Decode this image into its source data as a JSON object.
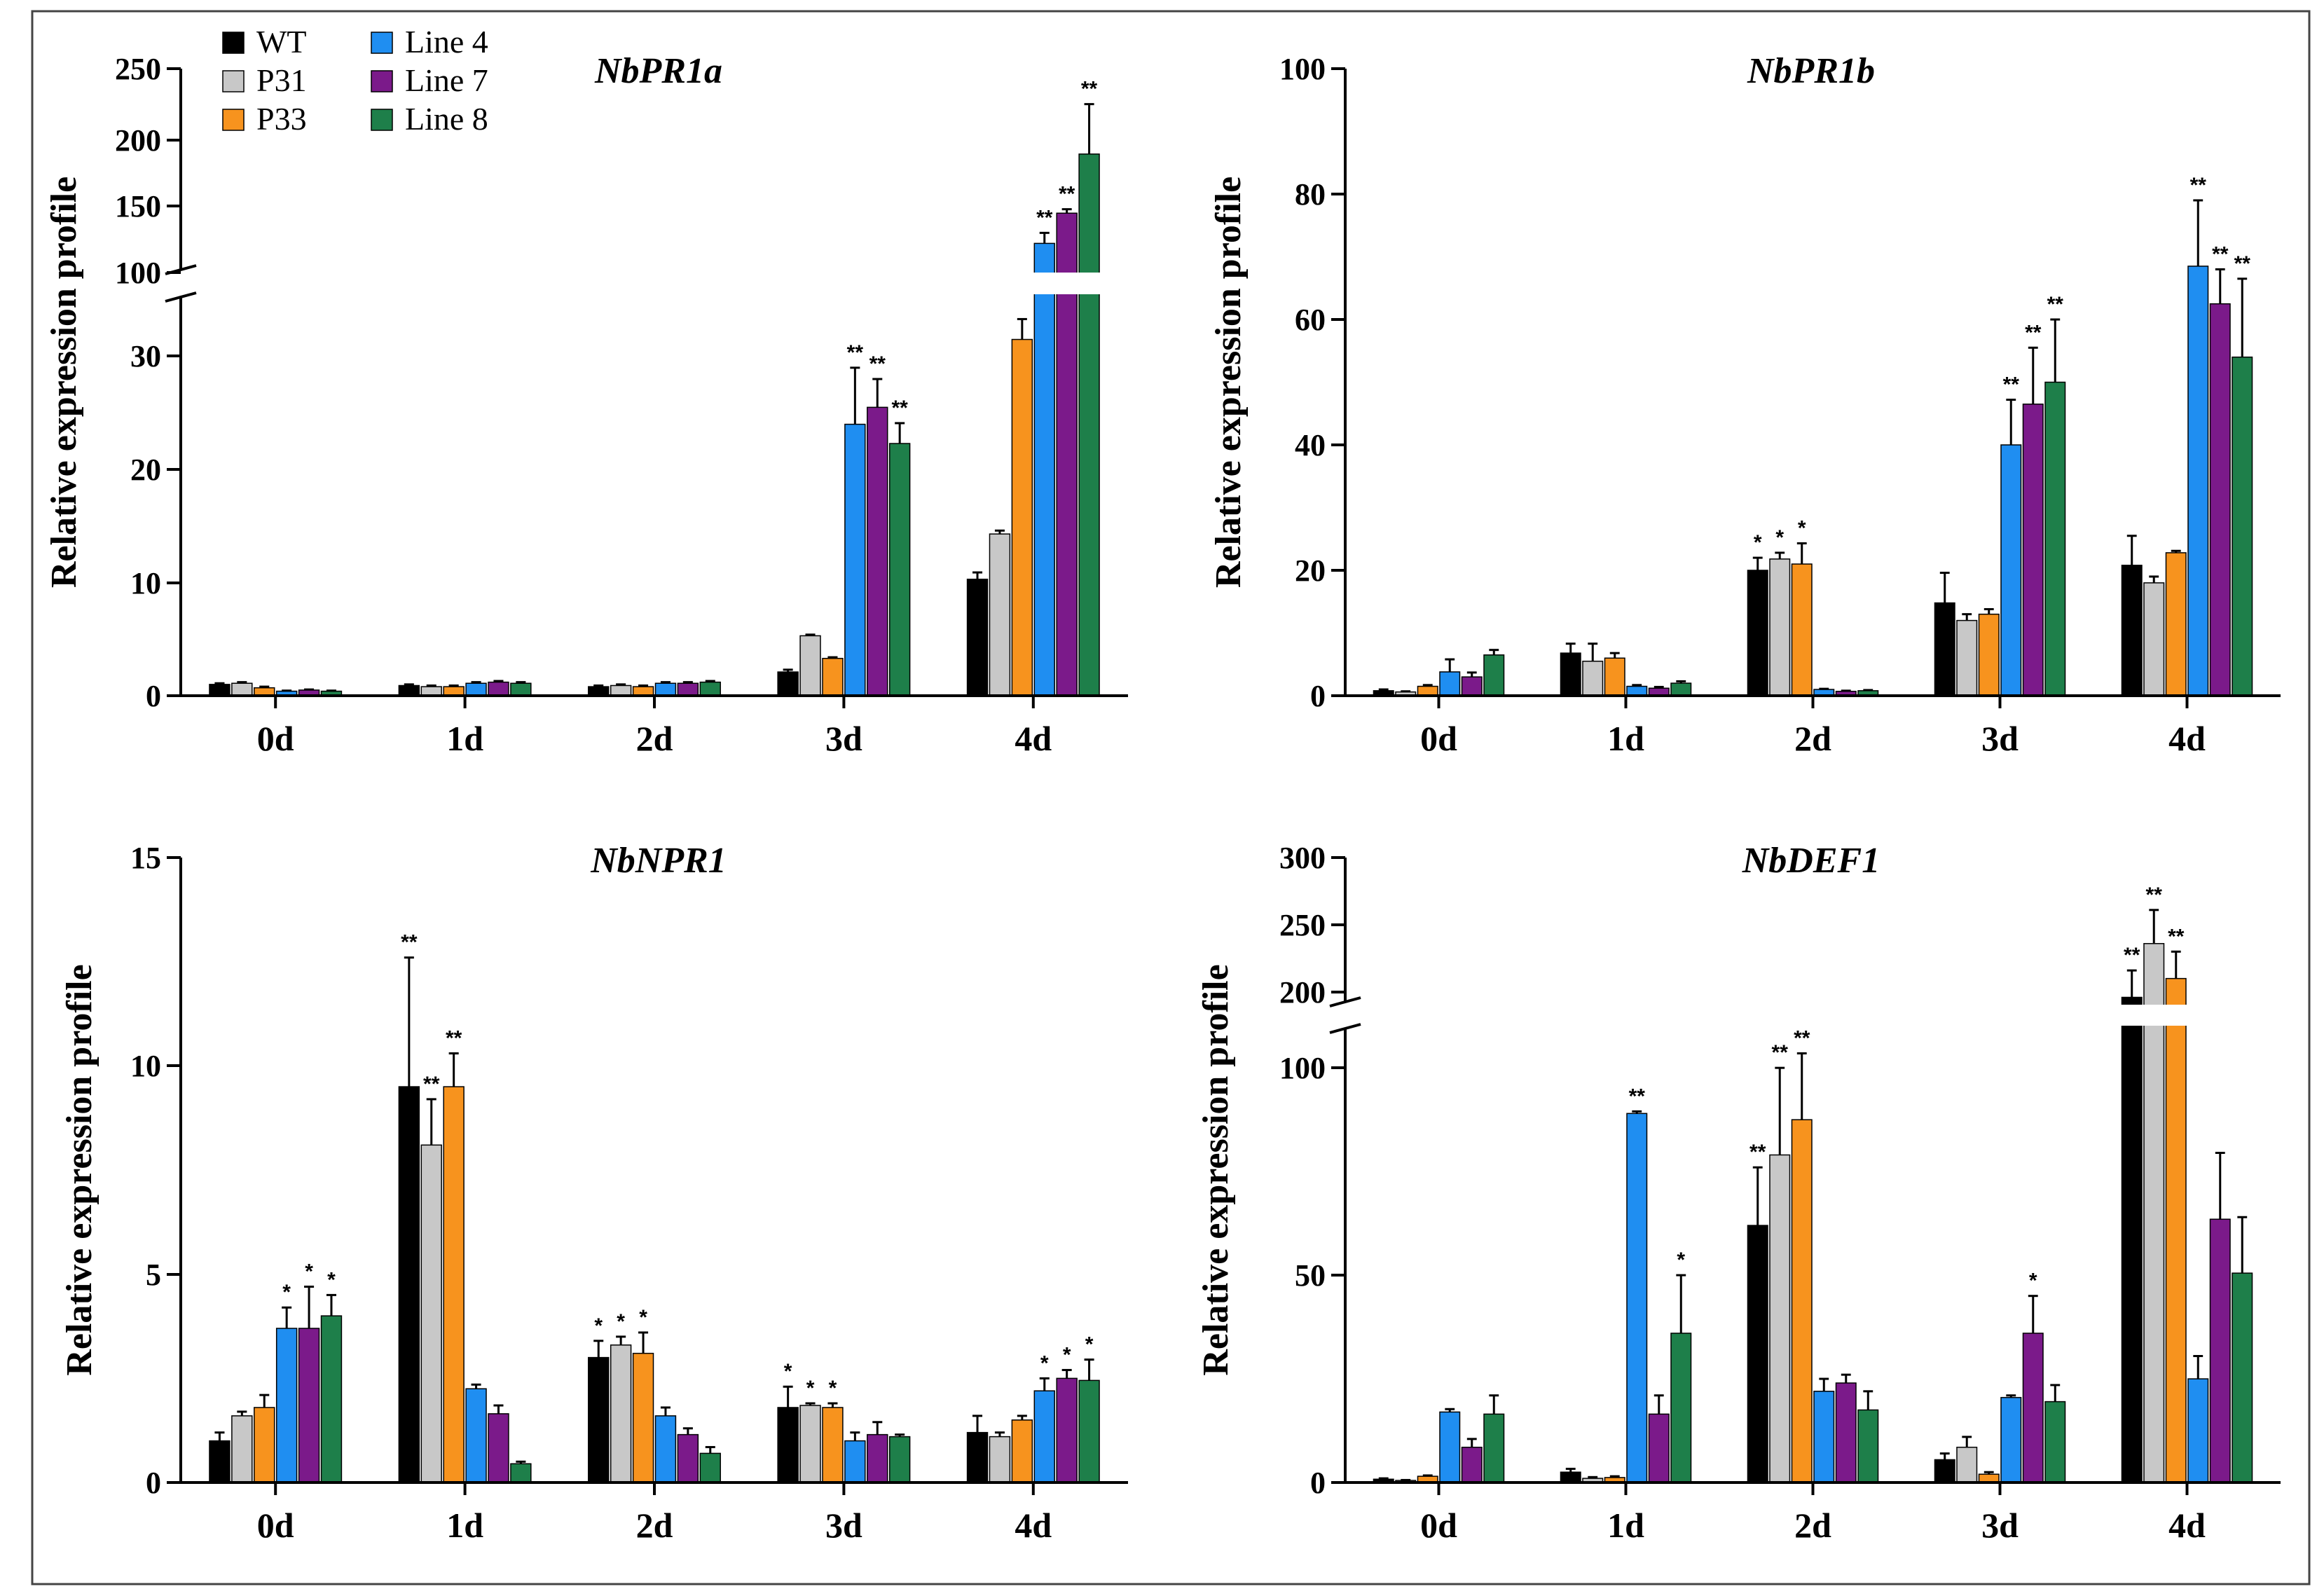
{
  "legend": [
    {
      "name": "WT",
      "color": "#000000"
    },
    {
      "name": "P31",
      "color": "#c8c8c8"
    },
    {
      "name": "P33",
      "color": "#f7931e"
    },
    {
      "name": "Line 4",
      "color": "#1f8ef1"
    },
    {
      "name": "Line 7",
      "color": "#7b1a8a"
    },
    {
      "name": "Line 8",
      "color": "#1e7f4a"
    }
  ],
  "chart_data": [
    {
      "type": "bar",
      "title": "NbPR1a",
      "ylabel": "Relative expression profile",
      "categories": [
        "0d",
        "1d",
        "2d",
        "3d",
        "4d"
      ],
      "y_axis_break": {
        "lower": [
          0,
          35
        ],
        "upper": [
          90,
          250
        ],
        "lower_ticks": [
          "0",
          "10",
          "20",
          "30"
        ],
        "upper_ticks": [
          "100",
          "150",
          "200",
          "250"
        ]
      },
      "series": [
        {
          "name": "WT",
          "values": [
            1.0,
            0.9,
            0.8,
            2.1,
            10.3
          ],
          "errors": [
            0.1,
            0.1,
            0.1,
            0.2,
            0.6
          ],
          "sig": [
            "",
            "",
            "",
            "",
            ""
          ]
        },
        {
          "name": "P31",
          "values": [
            1.1,
            0.8,
            0.9,
            5.3,
            14.3
          ],
          "errors": [
            0.1,
            0.1,
            0.1,
            0.1,
            0.3
          ],
          "sig": [
            "",
            "",
            "",
            "",
            ""
          ]
        },
        {
          "name": "P33",
          "values": [
            0.7,
            0.8,
            0.8,
            3.3,
            31.5
          ],
          "errors": [
            0.1,
            0.1,
            0.1,
            0.1,
            1.8
          ],
          "sig": [
            "",
            "",
            "",
            "",
            ""
          ]
        },
        {
          "name": "Line 4",
          "values": [
            0.4,
            1.1,
            1.1,
            24.0,
            117
          ],
          "errors": [
            0.05,
            0.1,
            0.1,
            5.0,
            8
          ],
          "sig": [
            "",
            "",
            "",
            "**",
            "**"
          ]
        },
        {
          "name": "Line 7",
          "values": [
            0.5,
            1.2,
            1.1,
            25.5,
            140
          ],
          "errors": [
            0.05,
            0.1,
            0.1,
            2.5,
            3
          ],
          "sig": [
            "",
            "",
            "",
            "**",
            "**"
          ]
        },
        {
          "name": "Line 8",
          "values": [
            0.4,
            1.1,
            1.2,
            22.3,
            185
          ],
          "errors": [
            0.05,
            0.1,
            0.1,
            1.8,
            38
          ],
          "sig": [
            "",
            "",
            "",
            "**",
            "**"
          ]
        }
      ]
    },
    {
      "type": "bar",
      "title": "NbPR1b",
      "ylabel": "Relative expression profile",
      "categories": [
        "0d",
        "1d",
        "2d",
        "3d",
        "4d"
      ],
      "ylim": [
        0,
        100
      ],
      "ytick_labels": [
        "0",
        "20",
        "40",
        "60",
        "80",
        "100"
      ],
      "series": [
        {
          "name": "WT",
          "values": [
            0.8,
            6.8,
            20.0,
            14.8,
            20.8
          ],
          "errors": [
            0.2,
            1.5,
            2.0,
            4.8,
            4.7
          ],
          "sig": [
            "",
            "",
            "*",
            "",
            ""
          ]
        },
        {
          "name": "P31",
          "values": [
            0.6,
            5.5,
            21.8,
            12.0,
            18.0
          ],
          "errors": [
            0.1,
            2.8,
            1.0,
            1.0,
            1.0
          ],
          "sig": [
            "",
            "",
            "*",
            "",
            ""
          ]
        },
        {
          "name": "P33",
          "values": [
            1.5,
            6.0,
            21.0,
            13.0,
            22.8
          ],
          "errors": [
            0.2,
            0.8,
            3.3,
            0.8,
            0.3
          ],
          "sig": [
            "",
            "",
            "*",
            "",
            ""
          ]
        },
        {
          "name": "Line 4",
          "values": [
            3.8,
            1.5,
            1.0,
            40.0,
            68.5
          ],
          "errors": [
            2.0,
            0.2,
            0.1,
            7.2,
            10.5
          ],
          "sig": [
            "",
            "",
            "",
            "**",
            "**"
          ]
        },
        {
          "name": "Line 7",
          "values": [
            3.0,
            1.2,
            0.7,
            46.5,
            62.5
          ],
          "errors": [
            0.7,
            0.2,
            0.1,
            9.0,
            5.5
          ],
          "sig": [
            "",
            "",
            "",
            "**",
            "**"
          ]
        },
        {
          "name": "Line 8",
          "values": [
            6.5,
            2.0,
            0.8,
            50.0,
            54.0
          ],
          "errors": [
            0.8,
            0.3,
            0.1,
            10.0,
            12.5
          ],
          "sig": [
            "",
            "",
            "",
            "**",
            "**"
          ]
        }
      ]
    },
    {
      "type": "bar",
      "title": "NbNPR1",
      "ylabel": "Relative expression profile",
      "categories": [
        "0d",
        "1d",
        "2d",
        "3d",
        "4d"
      ],
      "ylim": [
        0,
        15
      ],
      "ytick_labels": [
        "0",
        "5",
        "10",
        "15"
      ],
      "series": [
        {
          "name": "WT",
          "values": [
            1.0,
            9.5,
            3.0,
            1.8,
            1.2
          ],
          "errors": [
            0.2,
            3.1,
            0.4,
            0.5,
            0.4
          ],
          "sig": [
            "",
            "**",
            "*",
            "*",
            ""
          ]
        },
        {
          "name": "P31",
          "values": [
            1.6,
            8.1,
            3.3,
            1.85,
            1.1
          ],
          "errors": [
            0.1,
            1.1,
            0.2,
            0.05,
            0.1
          ],
          "sig": [
            "",
            "**",
            "*",
            "*",
            ""
          ]
        },
        {
          "name": "P33",
          "values": [
            1.8,
            9.5,
            3.1,
            1.8,
            1.5
          ],
          "errors": [
            0.3,
            0.8,
            0.5,
            0.1,
            0.1
          ],
          "sig": [
            "",
            "**",
            "*",
            "*",
            ""
          ]
        },
        {
          "name": "Line 4",
          "values": [
            3.7,
            2.25,
            1.6,
            1.0,
            2.2
          ],
          "errors": [
            0.5,
            0.1,
            0.2,
            0.2,
            0.3
          ],
          "sig": [
            "*",
            "",
            "",
            "",
            "*"
          ]
        },
        {
          "name": "Line 7",
          "values": [
            3.7,
            1.65,
            1.15,
            1.15,
            2.5
          ],
          "errors": [
            1.0,
            0.2,
            0.15,
            0.3,
            0.2
          ],
          "sig": [
            "*",
            "",
            "",
            "",
            "*"
          ]
        },
        {
          "name": "Line 8",
          "values": [
            4.0,
            0.45,
            0.7,
            1.1,
            2.45
          ],
          "errors": [
            0.5,
            0.05,
            0.15,
            0.05,
            0.5
          ],
          "sig": [
            "*",
            "",
            "",
            "",
            "*"
          ]
        }
      ]
    },
    {
      "type": "bar",
      "title": "NbDEF1",
      "ylabel": "Relative expression profile",
      "categories": [
        "0d",
        "1d",
        "2d",
        "3d",
        "4d"
      ],
      "y_axis_break": {
        "lower": [
          0,
          110
        ],
        "upper": [
          190,
          300
        ],
        "lower_ticks": [
          "0",
          "50",
          "100"
        ],
        "upper_ticks": [
          "200",
          "250",
          "300"
        ]
      },
      "series": [
        {
          "name": "WT",
          "values": [
            0.8,
            2.5,
            62.0,
            5.5,
            196
          ],
          "errors": [
            0.2,
            0.8,
            14.0,
            1.5,
            20
          ],
          "sig": [
            "",
            "",
            "**",
            "",
            "**"
          ]
        },
        {
          "name": "P31",
          "values": [
            0.5,
            1.0,
            79.0,
            8.5,
            236
          ],
          "errors": [
            0.1,
            0.3,
            21.0,
            2.5,
            25
          ],
          "sig": [
            "",
            "",
            "**",
            "",
            "**"
          ]
        },
        {
          "name": "P33",
          "values": [
            1.5,
            1.2,
            87.5,
            2.0,
            210
          ],
          "errors": [
            0.2,
            0.3,
            16.0,
            0.5,
            20
          ],
          "sig": [
            "",
            "",
            "**",
            "",
            "**"
          ]
        },
        {
          "name": "Line 4",
          "values": [
            17.0,
            89.0,
            22.0,
            20.5,
            25.0
          ],
          "errors": [
            0.7,
            0.5,
            3.0,
            0.5,
            5.5
          ],
          "sig": [
            "",
            "**",
            "",
            "",
            ""
          ]
        },
        {
          "name": "Line 7",
          "values": [
            8.5,
            16.5,
            24.0,
            36.0,
            63.5
          ],
          "errors": [
            2.0,
            4.5,
            2.0,
            9.0,
            16.0
          ],
          "sig": [
            "",
            "",
            "",
            "*",
            ""
          ]
        },
        {
          "name": "Line 8",
          "values": [
            16.5,
            36.0,
            17.5,
            19.5,
            50.5
          ],
          "errors": [
            4.5,
            14.0,
            4.5,
            4.0,
            13.5
          ],
          "sig": [
            "",
            "*",
            "",
            "",
            ""
          ]
        }
      ]
    }
  ]
}
